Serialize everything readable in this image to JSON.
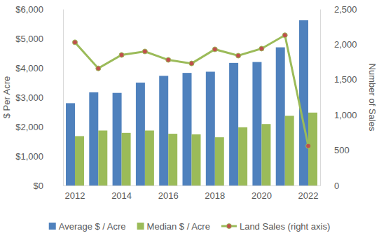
{
  "chart_data": {
    "type": "bar",
    "y_label": "$ Per Acre",
    "y2_label": "Number of Sales",
    "categories": [
      "2012",
      null,
      "2014",
      null,
      "2016",
      null,
      "2018",
      null,
      "2020",
      null,
      "2022"
    ],
    "series": [
      {
        "name": "Average $ / Acre",
        "type": "bar",
        "color": "#4f81bd",
        "values": [
          2800,
          3170,
          3150,
          3500,
          3730,
          3830,
          3870,
          4170,
          4200,
          4700,
          5620
        ]
      },
      {
        "name": "Median $ / Acre",
        "type": "bar",
        "color": "#9bbb59",
        "values": [
          1680,
          1870,
          1790,
          1870,
          1760,
          1740,
          1640,
          1980,
          2090,
          2370,
          2480
        ]
      },
      {
        "name": "Land Sales (right axis)",
        "type": "line",
        "axis": "y2",
        "color": "#9bbb59",
        "marker": "circle",
        "values": [
          2030,
          1660,
          1850,
          1900,
          1780,
          1730,
          1930,
          1840,
          1940,
          2130,
          560
        ]
      }
    ],
    "ylim": [
      0,
      6000
    ],
    "yticks": [
      {
        "value": 0,
        "label": "$0"
      },
      {
        "value": 1000,
        "label": "$1,000"
      },
      {
        "value": 2000,
        "label": "$2,000"
      },
      {
        "value": 3000,
        "label": "$3,000"
      },
      {
        "value": 4000,
        "label": "$4,000"
      },
      {
        "value": 5000,
        "label": "$5,000"
      },
      {
        "value": 6000,
        "label": "$6,000"
      }
    ],
    "y2lim": [
      0,
      2500
    ],
    "y2ticks": [
      0,
      500,
      {
        "value": 1000,
        "label": "1,000"
      },
      {
        "value": 1500,
        "label": "1,500"
      },
      {
        "value": 2000,
        "label": "2,000"
      },
      {
        "value": 2500,
        "label": "2,500"
      }
    ],
    "grid": false,
    "legend": "bottom"
  }
}
